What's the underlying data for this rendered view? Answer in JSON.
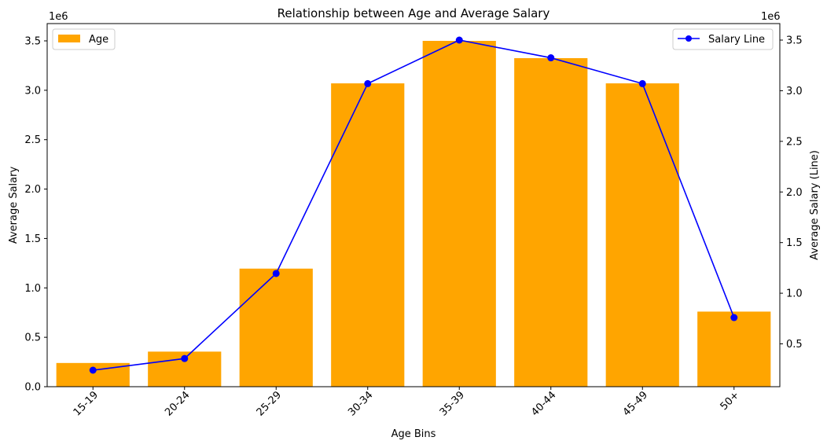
{
  "chart_data": {
    "type": "bar",
    "title": "Relationship between Age and Average Salary",
    "xlabel": "Age Bins",
    "ylabel": "Average Salary",
    "ylabel_right": "Average Salary (Line)",
    "offset_left": "1e6",
    "offset_right": "1e6",
    "categories": [
      "15-19",
      "20-24",
      "25-29",
      "30-34",
      "35-39",
      "40-44",
      "45-49",
      "50+"
    ],
    "series": [
      {
        "name": "Age",
        "type": "bar",
        "axis": "left",
        "color": "#ffa500",
        "values": [
          240000,
          355000,
          1195000,
          3070000,
          3500000,
          3325000,
          3070000,
          760000
        ]
      },
      {
        "name": "Salary Line",
        "type": "line",
        "axis": "right",
        "color": "#0000ff",
        "values": [
          240000,
          355000,
          1195000,
          3070000,
          3500000,
          3325000,
          3070000,
          760000
        ]
      }
    ],
    "ylim": [
      0,
      3675000
    ],
    "yticks": [
      0,
      500000,
      1000000,
      1500000,
      2000000,
      2500000,
      3000000,
      3500000
    ],
    "ytick_labels": [
      "0.0",
      "0.5",
      "1.0",
      "1.5",
      "2.0",
      "2.5",
      "3.0",
      "3.5"
    ],
    "ylim_right": [
      77000,
      3663000
    ],
    "yticks_right": [
      500000,
      1000000,
      1500000,
      2000000,
      2500000,
      3000000,
      3500000
    ],
    "ytick_labels_right": [
      "0.5",
      "1.0",
      "1.5",
      "2.0",
      "2.5",
      "3.0",
      "3.5"
    ],
    "legend_bar_position": "top-left",
    "legend_line_position": "top-right",
    "grid": false
  }
}
